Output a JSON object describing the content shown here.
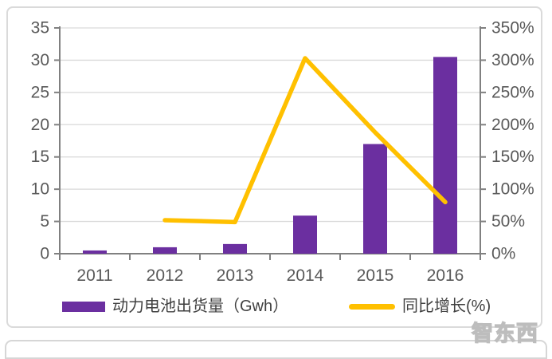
{
  "chart_data": {
    "type": "bar",
    "subtype": "bar+line-combo",
    "categories": [
      "2011",
      "2012",
      "2013",
      "2014",
      "2015",
      "2016"
    ],
    "series": [
      {
        "name": "动力电池出货量（Gwh）",
        "type": "bar",
        "axis": "left",
        "color": "#6B2FA0",
        "values": [
          0.5,
          1,
          1.5,
          5.9,
          17,
          30.5
        ]
      },
      {
        "name": "同比增长(%)",
        "type": "line",
        "axis": "right",
        "color": "#FFC000",
        "values": [
          null,
          52,
          49,
          303,
          188,
          80
        ]
      }
    ],
    "title": "",
    "xlabel": "",
    "ylabel": "",
    "left_axis": {
      "min": 0,
      "max": 35,
      "step": 5,
      "tick_labels": [
        "0",
        "5",
        "10",
        "15",
        "20",
        "25",
        "30",
        "35"
      ]
    },
    "right_axis": {
      "min": 0,
      "max": 350,
      "step": 50,
      "tick_labels": [
        "0%",
        "50%",
        "100%",
        "150%",
        "200%",
        "250%",
        "300%",
        "350%"
      ]
    },
    "grid": true,
    "legend_position": "bottom"
  },
  "legend": {
    "bar_label": "动力电池出货量（Gwh）",
    "line_label": "同比增长(%)"
  },
  "watermark": "智东西",
  "colors": {
    "bar": "#6B2FA0",
    "line": "#FFC000",
    "axis": "#808080",
    "grid": "#d9d9d9",
    "tick_text": "#595959",
    "legend_text": "#404040",
    "card_border": "#dadada"
  }
}
